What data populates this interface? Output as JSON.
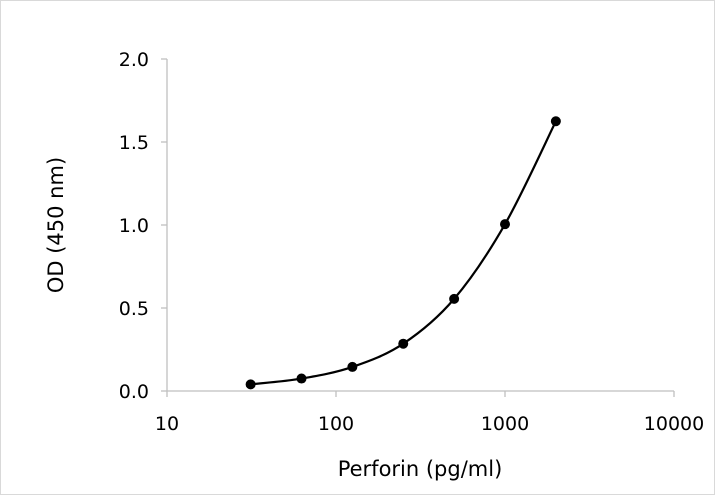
{
  "chart_data": {
    "type": "scatter",
    "title": "",
    "xlabel": "Perforin (pg/ml)",
    "ylabel": "OD (450 nm)",
    "x_scale": "log",
    "xlim": [
      10,
      10000
    ],
    "ylim": [
      0,
      2.0
    ],
    "x_ticks": [
      10,
      100,
      1000,
      10000
    ],
    "x_tick_labels": [
      "10",
      "100",
      "1000",
      "10000"
    ],
    "y_ticks": [
      0,
      0.5,
      1.0,
      1.5,
      2.0
    ],
    "y_tick_labels": [
      "0.0",
      "0.5",
      "1.0",
      "1.5",
      "2.0"
    ],
    "grid": false,
    "legend": "none",
    "series": [
      {
        "x": [
          31.25,
          62.5,
          125,
          250,
          500,
          1000,
          2000
        ],
        "y": [
          0.04,
          0.075,
          0.145,
          0.285,
          0.555,
          1.005,
          1.625
        ],
        "marker": "circle",
        "fit_line": "smooth",
        "color": "#000000"
      }
    ]
  }
}
